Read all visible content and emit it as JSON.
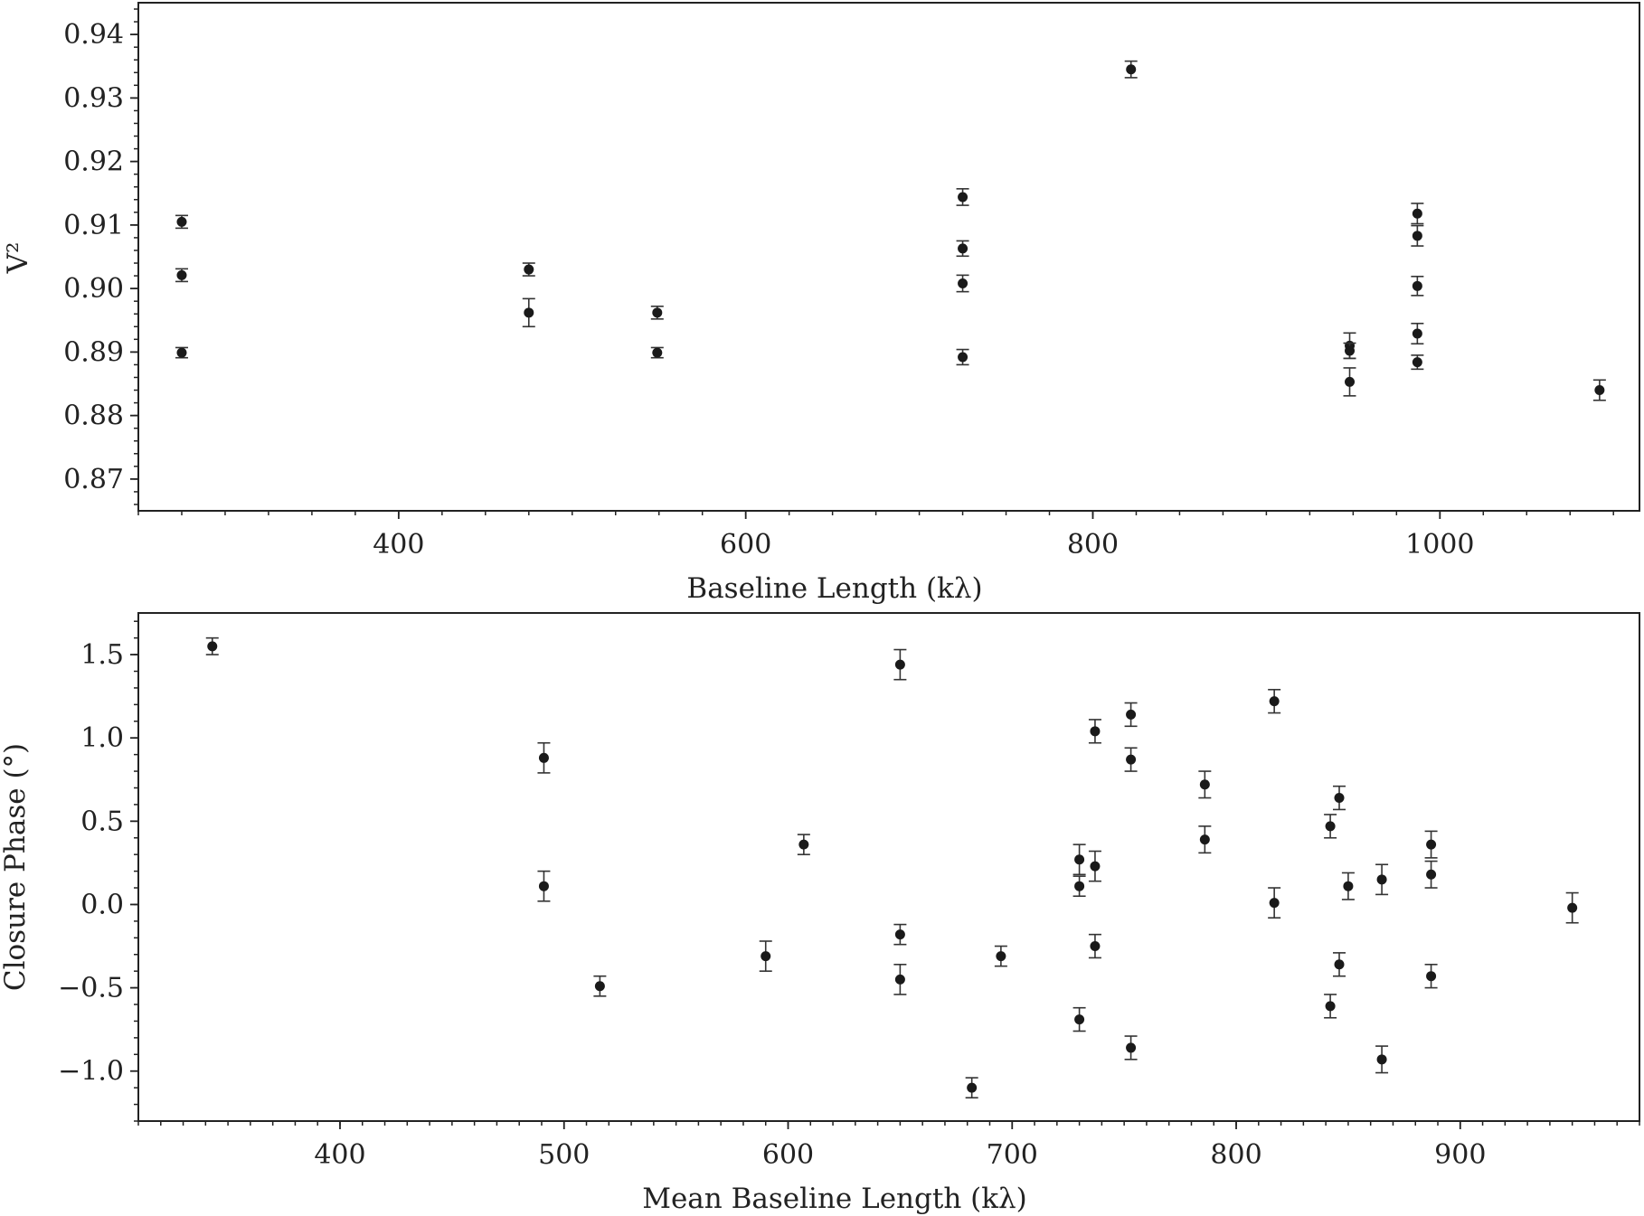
{
  "chart_data": [
    {
      "type": "scatter",
      "error_bars": true,
      "xlabel": "Baseline Length (kλ)",
      "ylabel": "V²",
      "xlim": [
        250,
        1115
      ],
      "ylim": [
        0.865,
        0.945
      ],
      "xticks": [
        400,
        600,
        800,
        1000
      ],
      "yticks": [
        0.87,
        0.88,
        0.89,
        0.9,
        0.91,
        0.92,
        0.93,
        0.94
      ],
      "xtick_labels": [
        "400",
        "600",
        "800",
        "1000"
      ],
      "ytick_labels": [
        "0.87",
        "0.88",
        "0.89",
        "0.90",
        "0.91",
        "0.92",
        "0.93",
        "0.94"
      ],
      "grid": false,
      "marker_color": "#1a1a1a",
      "points": [
        {
          "x": 275,
          "y": 0.9105,
          "err": 0.001
        },
        {
          "x": 275,
          "y": 0.9021,
          "err": 0.001
        },
        {
          "x": 275,
          "y": 0.8899,
          "err": 0.0008
        },
        {
          "x": 475,
          "y": 0.903,
          "err": 0.001
        },
        {
          "x": 475,
          "y": 0.8962,
          "err": 0.0022
        },
        {
          "x": 549,
          "y": 0.8962,
          "err": 0.001
        },
        {
          "x": 549,
          "y": 0.8899,
          "err": 0.0008
        },
        {
          "x": 725,
          "y": 0.9144,
          "err": 0.0013
        },
        {
          "x": 725,
          "y": 0.9063,
          "err": 0.0012
        },
        {
          "x": 725,
          "y": 0.9008,
          "err": 0.0013
        },
        {
          "x": 725,
          "y": 0.8892,
          "err": 0.0012
        },
        {
          "x": 822,
          "y": 0.9345,
          "err": 0.0013
        },
        {
          "x": 948,
          "y": 0.891,
          "err": 0.002
        },
        {
          "x": 948,
          "y": 0.8902,
          "err": 0.0012
        },
        {
          "x": 948,
          "y": 0.8853,
          "err": 0.0022
        },
        {
          "x": 987,
          "y": 0.9118,
          "err": 0.0016
        },
        {
          "x": 987,
          "y": 0.9083,
          "err": 0.0016
        },
        {
          "x": 987,
          "y": 0.9004,
          "err": 0.0015
        },
        {
          "x": 987,
          "y": 0.8929,
          "err": 0.0016
        },
        {
          "x": 987,
          "y": 0.8884,
          "err": 0.0011
        },
        {
          "x": 1092,
          "y": 0.884,
          "err": 0.0016
        }
      ]
    },
    {
      "type": "scatter",
      "error_bars": true,
      "xlabel": "Mean Baseline Length (kλ)",
      "ylabel": "Closure Phase (°)",
      "xlim": [
        310,
        980
      ],
      "ylim": [
        -1.3,
        1.75
      ],
      "xticks": [
        400,
        500,
        600,
        700,
        800,
        900
      ],
      "yticks": [
        1.5,
        1.0,
        0.5,
        0.0,
        -0.5,
        -1.0
      ],
      "xtick_labels": [
        "400",
        "500",
        "600",
        "700",
        "800",
        "900"
      ],
      "ytick_labels": [
        "1.5",
        "1.0",
        "0.5",
        "0.0",
        "−0.5",
        "−1.0"
      ],
      "grid": false,
      "marker_color": "#1a1a1a",
      "points": [
        {
          "x": 343,
          "y": 1.55,
          "err": 0.05
        },
        {
          "x": 491,
          "y": 0.88,
          "err": 0.09
        },
        {
          "x": 491,
          "y": 0.11,
          "err": 0.09
        },
        {
          "x": 516,
          "y": -0.49,
          "err": 0.06
        },
        {
          "x": 590,
          "y": -0.31,
          "err": 0.09
        },
        {
          "x": 607,
          "y": 0.36,
          "err": 0.06
        },
        {
          "x": 650,
          "y": 1.44,
          "err": 0.09
        },
        {
          "x": 650,
          "y": -0.18,
          "err": 0.06
        },
        {
          "x": 650,
          "y": -0.45,
          "err": 0.09
        },
        {
          "x": 682,
          "y": -1.1,
          "err": 0.06
        },
        {
          "x": 695,
          "y": -0.31,
          "err": 0.06
        },
        {
          "x": 730,
          "y": 0.27,
          "err": 0.09
        },
        {
          "x": 730,
          "y": 0.11,
          "err": 0.06
        },
        {
          "x": 730,
          "y": -0.69,
          "err": 0.07
        },
        {
          "x": 737,
          "y": 1.04,
          "err": 0.07
        },
        {
          "x": 737,
          "y": 0.23,
          "err": 0.09
        },
        {
          "x": 737,
          "y": -0.25,
          "err": 0.07
        },
        {
          "x": 753,
          "y": 1.14,
          "err": 0.07
        },
        {
          "x": 753,
          "y": 0.87,
          "err": 0.07
        },
        {
          "x": 753,
          "y": -0.86,
          "err": 0.07
        },
        {
          "x": 786,
          "y": 0.72,
          "err": 0.08
        },
        {
          "x": 786,
          "y": 0.39,
          "err": 0.08
        },
        {
          "x": 817,
          "y": 1.22,
          "err": 0.07
        },
        {
          "x": 817,
          "y": 0.01,
          "err": 0.09
        },
        {
          "x": 842,
          "y": 0.47,
          "err": 0.07
        },
        {
          "x": 842,
          "y": -0.61,
          "err": 0.07
        },
        {
          "x": 846,
          "y": 0.64,
          "err": 0.07
        },
        {
          "x": 846,
          "y": -0.36,
          "err": 0.07
        },
        {
          "x": 850,
          "y": 0.11,
          "err": 0.08
        },
        {
          "x": 865,
          "y": 0.15,
          "err": 0.09
        },
        {
          "x": 865,
          "y": -0.93,
          "err": 0.08
        },
        {
          "x": 887,
          "y": 0.36,
          "err": 0.08
        },
        {
          "x": 887,
          "y": 0.18,
          "err": 0.08
        },
        {
          "x": 887,
          "y": -0.43,
          "err": 0.07
        },
        {
          "x": 950,
          "y": -0.02,
          "err": 0.09
        }
      ]
    }
  ]
}
